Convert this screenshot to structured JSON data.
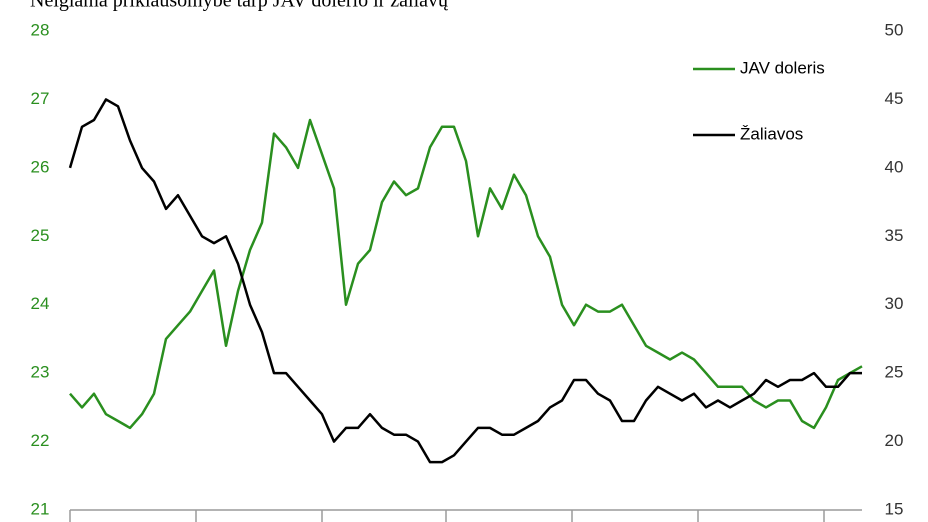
{
  "chart_data": {
    "type": "line",
    "title": "Neigiama priklausomybė tarp JAV dolerio ir žaliavų",
    "ylim": [
      21,
      28
    ],
    "yticks": [
      21,
      22,
      23,
      24,
      25,
      26,
      27,
      28
    ],
    "y2lim": [
      15,
      50
    ],
    "y2ticks": [
      15,
      20,
      25,
      30,
      35,
      40,
      45,
      50
    ],
    "grid": false,
    "legend": "upper right",
    "series": [
      {
        "name": "JAV doleris",
        "color": "#2a8f1f",
        "values": [
          22.7,
          22.5,
          22.7,
          22.4,
          22.3,
          22.2,
          22.4,
          22.7,
          23.5,
          23.7,
          23.9,
          24.2,
          24.5,
          23.4,
          24.2,
          24.8,
          25.2,
          26.5,
          26.3,
          26.0,
          26.7,
          26.2,
          25.7,
          24.0,
          24.6,
          24.8,
          25.5,
          25.8,
          25.6,
          25.7,
          26.3,
          26.6,
          26.6,
          26.1,
          25.0,
          25.7,
          25.4,
          25.9,
          25.6,
          25.0,
          24.7,
          24.0,
          23.7,
          24.0,
          23.9,
          23.9,
          24.0,
          23.7,
          23.4,
          23.3,
          23.2,
          23.3,
          23.2,
          23.0,
          22.8,
          22.8,
          22.8,
          22.6,
          22.5,
          22.6,
          22.6,
          22.3,
          22.2,
          22.5,
          22.9,
          23.0,
          23.1
        ]
      },
      {
        "name": "Žaliavos",
        "color": "#000000",
        "axis": "y2",
        "values": [
          40,
          43,
          43.5,
          45,
          44.5,
          42,
          40,
          39,
          37,
          38,
          36.5,
          35,
          34.5,
          35,
          33,
          30,
          28,
          25,
          25,
          24,
          23,
          22,
          20,
          21,
          21,
          22,
          21,
          20.5,
          20.5,
          20,
          18.5,
          18.5,
          19,
          20,
          21,
          21,
          20.5,
          20.5,
          21,
          21.5,
          22.5,
          23,
          24.5,
          24.5,
          23.5,
          23,
          21.5,
          21.5,
          23,
          24,
          23.5,
          23,
          23.5,
          22.5,
          23,
          22.5,
          23,
          23.5,
          24.5,
          24,
          24.5,
          24.5,
          25,
          24,
          24,
          25,
          25
        ]
      }
    ]
  }
}
